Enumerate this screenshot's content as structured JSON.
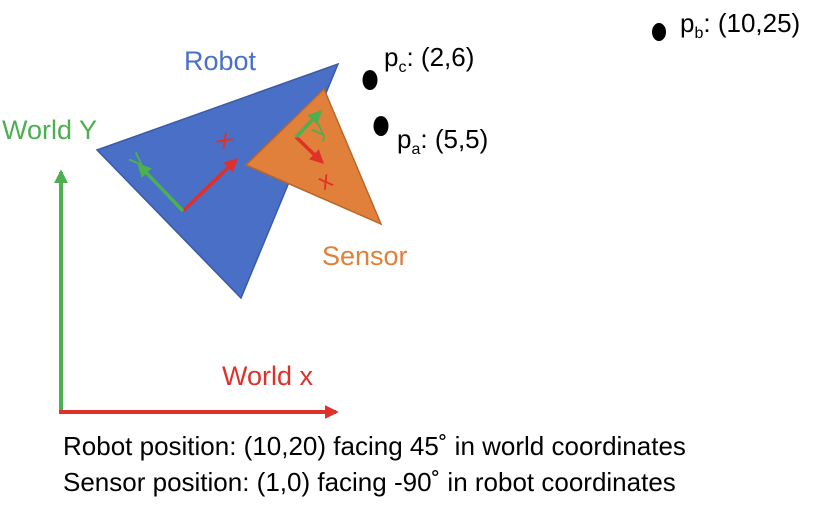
{
  "labels": {
    "robot": "Robot",
    "sensor": "Sensor",
    "world_y": "World Y",
    "world_x": "World x",
    "robot_x": "x",
    "robot_y": "y",
    "sensor_x": "x",
    "sensor_y": "y"
  },
  "points": [
    {
      "id": "pc",
      "base": "p",
      "sub": "c",
      "coords": ": (2,6)"
    },
    {
      "id": "pa",
      "base": "p",
      "sub": "a",
      "coords": ": (5,5)"
    },
    {
      "id": "pb",
      "base": "p",
      "sub": "b",
      "coords": ": (10,25)"
    }
  ],
  "caption": {
    "line1": "Robot position: (10,20) facing 45˚ in world coordinates",
    "line2": "Sensor position: (1,0) facing -90˚ in robot coordinates"
  },
  "colors": {
    "robot": "#4a6fc7",
    "sensor": "#e0803a",
    "x_axis": "#e0302a",
    "y_axis": "#4caf50",
    "point": "#000000"
  }
}
